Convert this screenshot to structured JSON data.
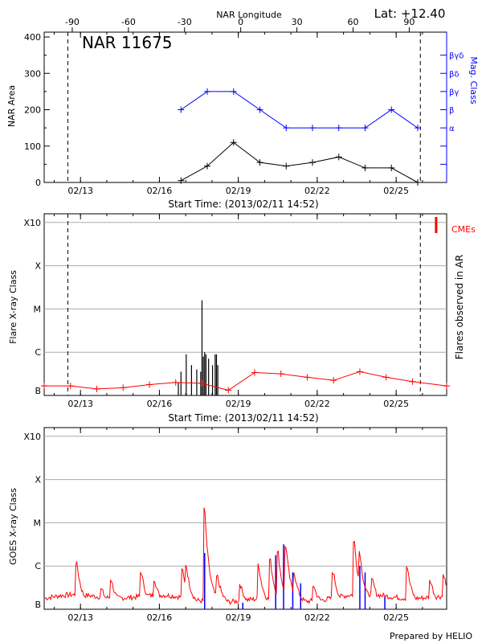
{
  "region_title": "NAR 11675",
  "latitude_label": "Lat: +12.40",
  "credit": "Prepared by HELIO",
  "colors": {
    "black": "#000000",
    "blue": "#0000ff",
    "red": "#ff0000",
    "grid": "#aaaaaa"
  },
  "chart_data": [
    {
      "type": "line",
      "id": "nar-area",
      "top_axis_title": "NAR Longitude",
      "top_axis_ticks": [
        -90,
        -60,
        -30,
        0,
        30,
        60,
        90
      ],
      "top_axis_labels": [
        "-90",
        "-60",
        "-30",
        "0",
        "30",
        "60",
        "90"
      ],
      "top_axis_range": [
        -105,
        110
      ],
      "x_start_time": "Start Time: (2013/02/11 14:52)",
      "x_range_days": [
        0,
        15.3
      ],
      "x_tick_days": [
        1.38,
        4.38,
        7.38,
        10.38,
        13.38
      ],
      "x_tick_labels": [
        "02/13",
        "02/16",
        "02/19",
        "02/22",
        "02/25"
      ],
      "dashed_marker_days": [
        0.9,
        14.3
      ],
      "ylabel": "NAR Area",
      "ylim": [
        0,
        400
      ],
      "y_ticks": [
        0,
        100,
        200,
        300,
        400
      ],
      "y_tick_labels": [
        "0",
        "100",
        "200",
        "300",
        "400"
      ],
      "right_axis_title": "Mag. Class",
      "right_axis_labels": [
        "βγδ",
        "βδ",
        "βγ",
        "β",
        "α"
      ],
      "right_axis_values": [
        350,
        300,
        250,
        200,
        150
      ],
      "series": [
        {
          "name": "NAR Area",
          "color": "#000000",
          "x": [
            5.2,
            6.2,
            7.2,
            8.2,
            9.2,
            10.2,
            11.2,
            12.2,
            13.2,
            14.2
          ],
          "y": [
            5,
            45,
            110,
            55,
            45,
            55,
            70,
            40,
            40,
            0
          ]
        },
        {
          "name": "Mag. Class",
          "color": "#0000ff",
          "x": [
            5.2,
            6.2,
            7.2,
            8.2,
            9.2,
            10.2,
            11.2,
            12.2,
            13.2,
            14.2
          ],
          "y": [
            200,
            250,
            250,
            200,
            150,
            150,
            150,
            150,
            200,
            150
          ]
        }
      ]
    },
    {
      "type": "bar",
      "id": "flares-observed",
      "x_start_time": "Start Time: (2013/02/11 14:52)",
      "x_range_days": [
        0,
        15.3
      ],
      "x_tick_days": [
        1.38,
        4.38,
        7.38,
        10.38,
        13.38
      ],
      "x_tick_labels": [
        "02/13",
        "02/16",
        "02/19",
        "02/22",
        "02/25"
      ],
      "dashed_marker_days": [
        0.9,
        14.3
      ],
      "ylabel": "Flare X-ray Class",
      "right_axis_title": "Flares observed in AR",
      "y_class_labels": [
        "B",
        "C",
        "M",
        "X",
        "X10"
      ],
      "ylim_log": [
        0,
        4.2
      ],
      "cme_label": "CMEs",
      "cme_days": [
        14.9
      ],
      "flares": {
        "days": [
          5.1,
          5.2,
          5.4,
          5.6,
          5.8,
          5.95,
          6.0,
          6.05,
          6.1,
          6.15,
          6.25,
          6.4,
          6.5,
          6.55,
          6.6
        ],
        "level": [
          0.3,
          0.55,
          0.95,
          0.7,
          0.6,
          0.55,
          2.2,
          0.9,
          1.0,
          0.95,
          0.85,
          0.7,
          0.95,
          0.95,
          0.7
        ]
      },
      "background_series": {
        "name": "Background",
        "color": "#ff0000",
        "x": [
          0,
          1,
          2,
          3,
          4,
          5,
          6,
          7,
          8,
          9,
          10,
          11,
          12,
          13,
          14,
          15.3
        ],
        "y": [
          0.22,
          0.22,
          0.15,
          0.18,
          0.25,
          0.3,
          0.28,
          0.12,
          0.53,
          0.5,
          0.42,
          0.35,
          0.55,
          0.42,
          0.32,
          0.22
        ]
      }
    },
    {
      "type": "line",
      "id": "goes-xray",
      "x_range_days": [
        0,
        15.3
      ],
      "x_tick_days": [
        1.38,
        4.38,
        7.38,
        10.38,
        13.38
      ],
      "x_tick_labels": [
        "02/13",
        "02/16",
        "02/19",
        "02/22",
        "02/25"
      ],
      "ylabel": "GOES X-ray Class",
      "y_class_labels": [
        "B",
        "C",
        "M",
        "X",
        "X10"
      ],
      "ylim_log": [
        0,
        4.2
      ],
      "background_level": 0.25,
      "bumps": [
        {
          "day": 1.25,
          "peak": 0.95
        },
        {
          "day": 2.2,
          "peak": 0.35
        },
        {
          "day": 2.55,
          "peak": 0.6
        },
        {
          "day": 3.7,
          "peak": 0.75
        },
        {
          "day": 4.2,
          "peak": 0.6
        },
        {
          "day": 5.25,
          "peak": 0.85
        },
        {
          "day": 5.4,
          "peak": 0.95
        },
        {
          "day": 6.1,
          "peak": 2.25
        },
        {
          "day": 6.6,
          "peak": 0.65
        },
        {
          "day": 7.45,
          "peak": 0.5
        },
        {
          "day": 8.15,
          "peak": 0.95
        },
        {
          "day": 8.6,
          "peak": 1.05
        },
        {
          "day": 8.9,
          "peak": 1.2
        },
        {
          "day": 9.2,
          "peak": 1.35
        },
        {
          "day": 9.5,
          "peak": 0.8
        },
        {
          "day": 10.25,
          "peak": 0.45
        },
        {
          "day": 11.0,
          "peak": 0.75
        },
        {
          "day": 11.8,
          "peak": 1.45
        },
        {
          "day": 12.0,
          "peak": 1.25
        },
        {
          "day": 12.5,
          "peak": 0.55
        },
        {
          "day": 13.8,
          "peak": 0.9
        },
        {
          "day": 14.7,
          "peak": 0.55
        },
        {
          "day": 15.2,
          "peak": 0.7
        }
      ],
      "blue_days": [
        6.1,
        7.55,
        8.8,
        9.1,
        9.45,
        9.75,
        12.0,
        12.2,
        12.95
      ],
      "blue_heights": [
        1.3,
        0.15,
        1.25,
        1.5,
        0.85,
        0.6,
        1.0,
        0.85,
        0.3
      ]
    }
  ]
}
